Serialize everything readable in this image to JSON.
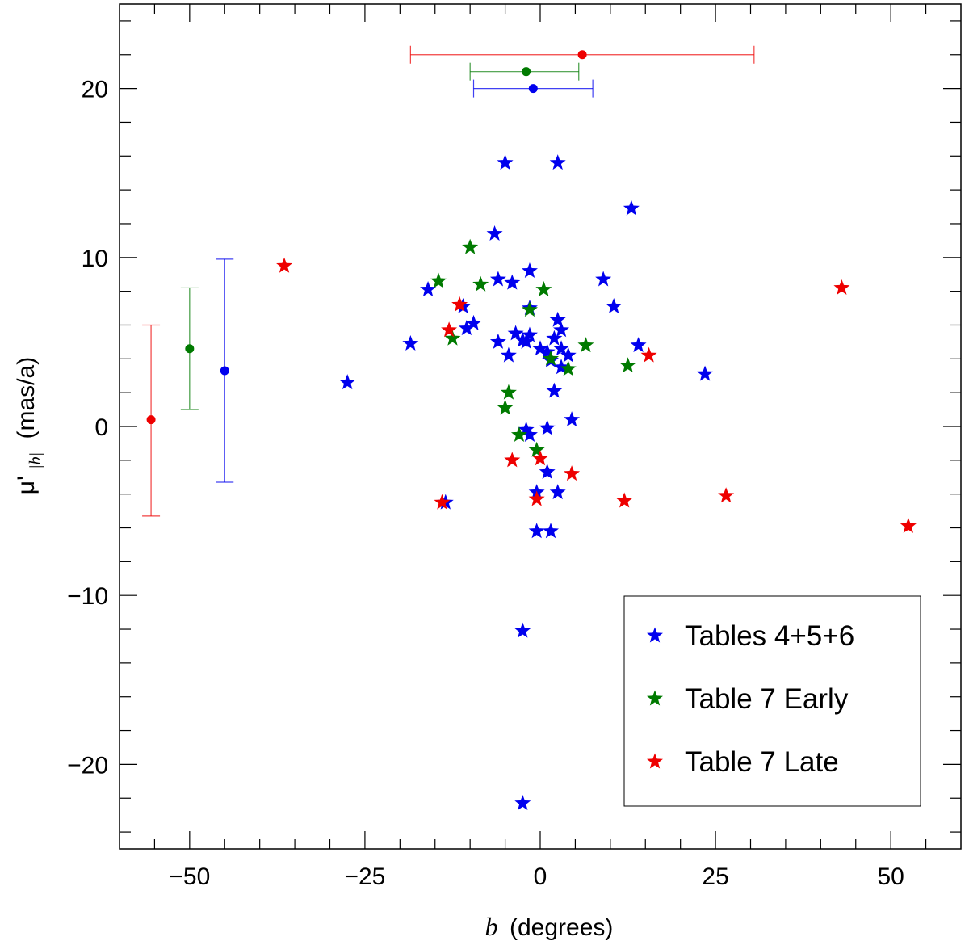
{
  "chart_data": {
    "type": "scatter",
    "title": "",
    "xlabel": {
      "symbol": "b",
      "unit": "(degrees)"
    },
    "ylabel": {
      "symbol": "μ'",
      "subscript": "|b|",
      "unit": "(mas/a)"
    },
    "xlim": [
      -60,
      60
    ],
    "ylim": [
      -25,
      25
    ],
    "xticks_major": [
      -50,
      -25,
      0,
      25,
      50
    ],
    "xtick_labels": [
      "−50",
      "−25",
      "0",
      "25",
      "50"
    ],
    "yticks_major": [
      -20,
      -10,
      0,
      10,
      20
    ],
    "ytick_labels": [
      "−20",
      "−10",
      "0",
      "10",
      "20"
    ],
    "legend_position": "bottom-right",
    "colors": {
      "blue": "#0000ee",
      "green": "#007a00",
      "red": "#ee0000"
    },
    "series": [
      {
        "name": "Tables 4+5+6",
        "color": "#0000ee",
        "marker": "star",
        "points": [
          [
            -5,
            15.6
          ],
          [
            2.5,
            15.6
          ],
          [
            13,
            12.9
          ],
          [
            -6.5,
            11.4
          ],
          [
            -1.5,
            9.2
          ],
          [
            9,
            8.7
          ],
          [
            -6,
            8.7
          ],
          [
            -4,
            8.5
          ],
          [
            -16,
            8.1
          ],
          [
            10.5,
            7.1
          ],
          [
            -11,
            7.1
          ],
          [
            -1.5,
            7
          ],
          [
            2.5,
            6.3
          ],
          [
            -9.5,
            6.1
          ],
          [
            -10.5,
            5.8
          ],
          [
            3,
            5.7
          ],
          [
            -3.5,
            5.5
          ],
          [
            -1.5,
            5.4
          ],
          [
            2,
            5.2
          ],
          [
            -2.5,
            5.1
          ],
          [
            -2,
            5
          ],
          [
            -6,
            5
          ],
          [
            -18.5,
            4.9
          ],
          [
            14,
            4.8
          ],
          [
            0,
            4.6
          ],
          [
            3,
            4.6
          ],
          [
            1,
            4.4
          ],
          [
            -4.5,
            4.2
          ],
          [
            4,
            4.2
          ],
          [
            1.5,
            3.9
          ],
          [
            3,
            3.5
          ],
          [
            23.5,
            3.1
          ],
          [
            -27.5,
            2.6
          ],
          [
            2,
            2.1
          ],
          [
            4.5,
            0.4
          ],
          [
            1,
            -0.1
          ],
          [
            -2,
            -0.2
          ],
          [
            -1.5,
            -0.5
          ],
          [
            1,
            -2.7
          ],
          [
            -0.5,
            -3.9
          ],
          [
            2.5,
            -3.9
          ],
          [
            -13.5,
            -4.5
          ],
          [
            -0.5,
            -6.2
          ],
          [
            1.5,
            -6.2
          ],
          [
            -2.5,
            -12.1
          ],
          [
            -2.5,
            -22.3
          ]
        ]
      },
      {
        "name": "Table 7 Early",
        "color": "#007a00",
        "marker": "star",
        "points": [
          [
            -10,
            10.6
          ],
          [
            -14.5,
            8.6
          ],
          [
            -8.5,
            8.4
          ],
          [
            0.5,
            8.1
          ],
          [
            -1.5,
            6.9
          ],
          [
            6.5,
            4.8
          ],
          [
            -12.5,
            5.2
          ],
          [
            1.5,
            4
          ],
          [
            4,
            3.4
          ],
          [
            12.5,
            3.6
          ],
          [
            -4.5,
            2
          ],
          [
            -5,
            1.1
          ],
          [
            -3,
            -0.5
          ],
          [
            -0.5,
            -1.4
          ]
        ]
      },
      {
        "name": "Table 7 Late",
        "color": "#ee0000",
        "marker": "star",
        "points": [
          [
            -36.5,
            9.5
          ],
          [
            43,
            8.2
          ],
          [
            -11.5,
            7.2
          ],
          [
            -13,
            5.7
          ],
          [
            15.5,
            4.2
          ],
          [
            -4,
            -2
          ],
          [
            0,
            -1.9
          ],
          [
            4.5,
            -2.8
          ],
          [
            -14,
            -4.5
          ],
          [
            12,
            -4.4
          ],
          [
            -0.5,
            -4.3
          ],
          [
            26.5,
            -4.1
          ],
          [
            52.5,
            -5.9
          ]
        ]
      }
    ],
    "error_bars": [
      {
        "color": "#ee0000",
        "orientation": "vertical",
        "x": -55.5,
        "y": 0.4,
        "low": -5.3,
        "high": 6
      },
      {
        "color": "#007a00",
        "orientation": "vertical",
        "x": -50,
        "y": 4.6,
        "low": 1,
        "high": 8.2
      },
      {
        "color": "#0000ee",
        "orientation": "vertical",
        "x": -45,
        "y": 3.3,
        "low": -3.3,
        "high": 9.9
      },
      {
        "color": "#ee0000",
        "orientation": "horizontal",
        "x": 6,
        "y": 22,
        "low": -18.5,
        "high": 30.5
      },
      {
        "color": "#007a00",
        "orientation": "horizontal",
        "x": -2,
        "y": 21,
        "low": -10,
        "high": 5.5
      },
      {
        "color": "#0000ee",
        "orientation": "horizontal",
        "x": -1,
        "y": 20,
        "low": -9.5,
        "high": 7.5
      }
    ]
  }
}
